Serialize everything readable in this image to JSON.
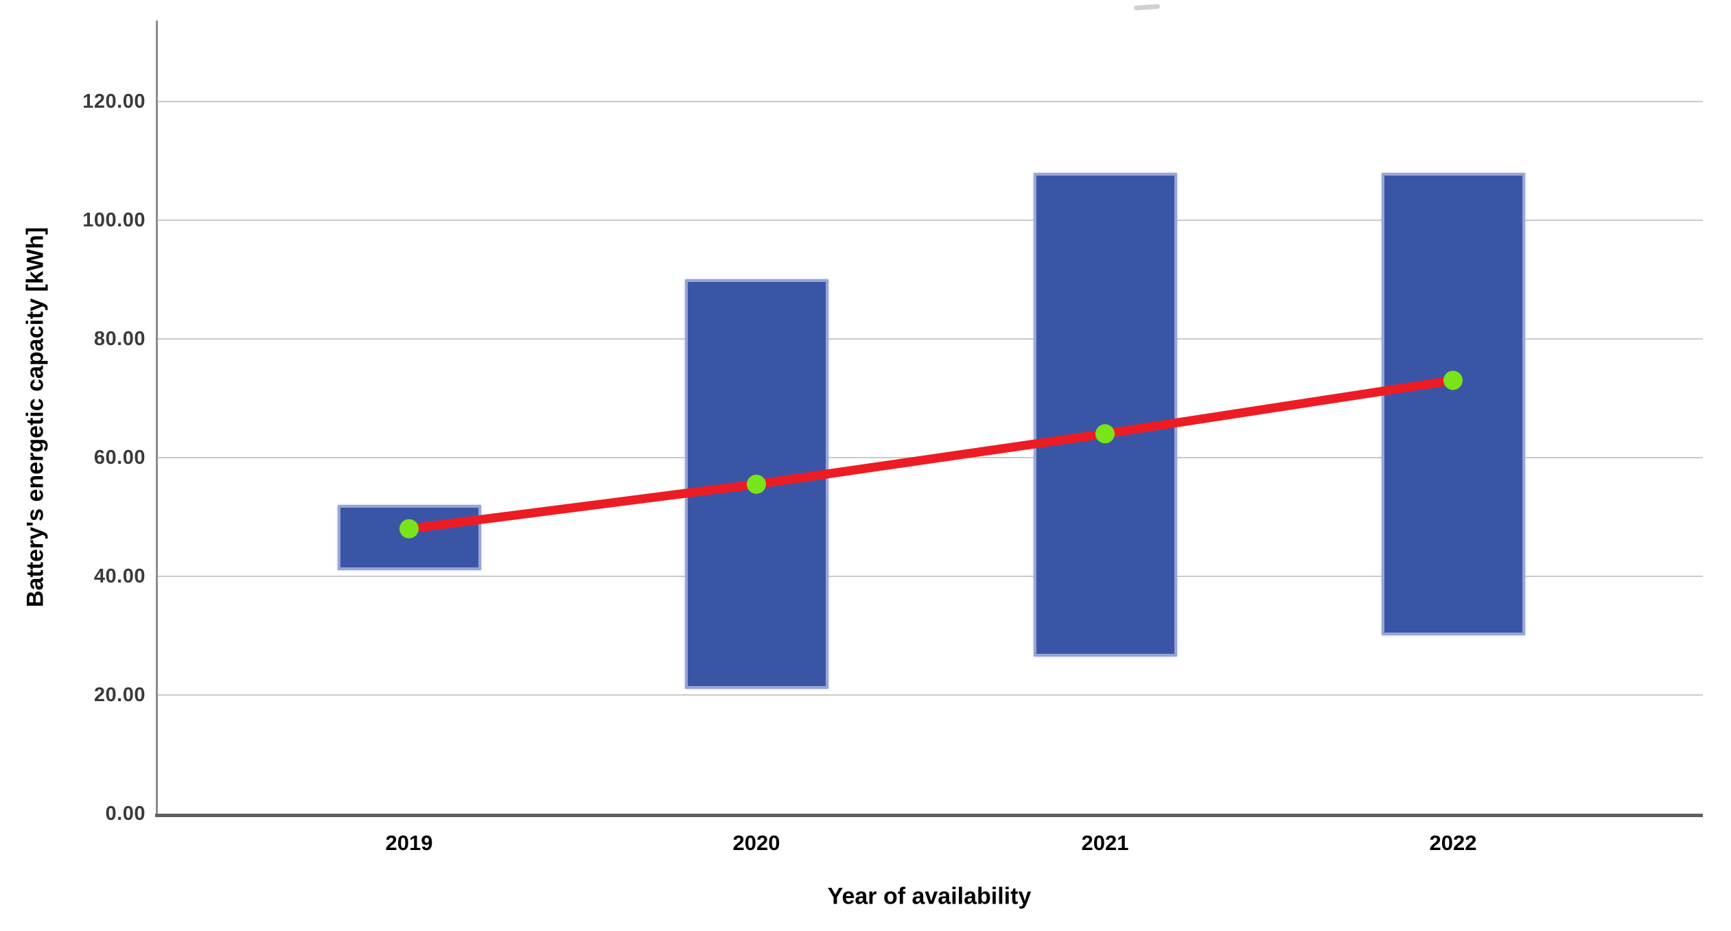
{
  "chart_data": {
    "type": "bar",
    "subtype": "floating-range-bars-with-mean-trend-line",
    "title": "",
    "xlabel": "Year of availability",
    "ylabel": "Battery's energetic capacity [kWh]",
    "categories": [
      "2019",
      "2020",
      "2021",
      "2022"
    ],
    "series": [
      {
        "name": "Battery capacity range (min to max)",
        "type": "floating-bar",
        "low": [
          41,
          21,
          26.5,
          30
        ],
        "high": [
          52,
          90,
          108,
          108
        ]
      },
      {
        "name": "Mean battery capacity trend",
        "type": "line-with-markers",
        "values": [
          48,
          55.5,
          64,
          73
        ]
      }
    ],
    "y_axis": {
      "ticks": [
        {
          "value": 0,
          "label": "0.00"
        },
        {
          "value": 20,
          "label": "20.00"
        },
        {
          "value": 40,
          "label": "40.00"
        },
        {
          "value": 60,
          "label": "60.00"
        },
        {
          "value": 80,
          "label": "80.00"
        },
        {
          "value": 100,
          "label": "100.00"
        },
        {
          "value": 120,
          "label": "120.00"
        }
      ],
      "range": [
        0,
        133.6
      ]
    },
    "grid": "horizontal-only",
    "legend": "none",
    "colors": {
      "bar_fill": "#3B55A6",
      "bar_border": "#98A5D4",
      "trend_line": "#ED1C24",
      "marker_fill": "#78E419",
      "gridline": "#CACACA",
      "y_axis_line": "#8C8C8C",
      "x_axis_line": "#5F5F5F",
      "y_tick_color": "#3A3A3A",
      "x_tick_color": "#000000"
    }
  }
}
